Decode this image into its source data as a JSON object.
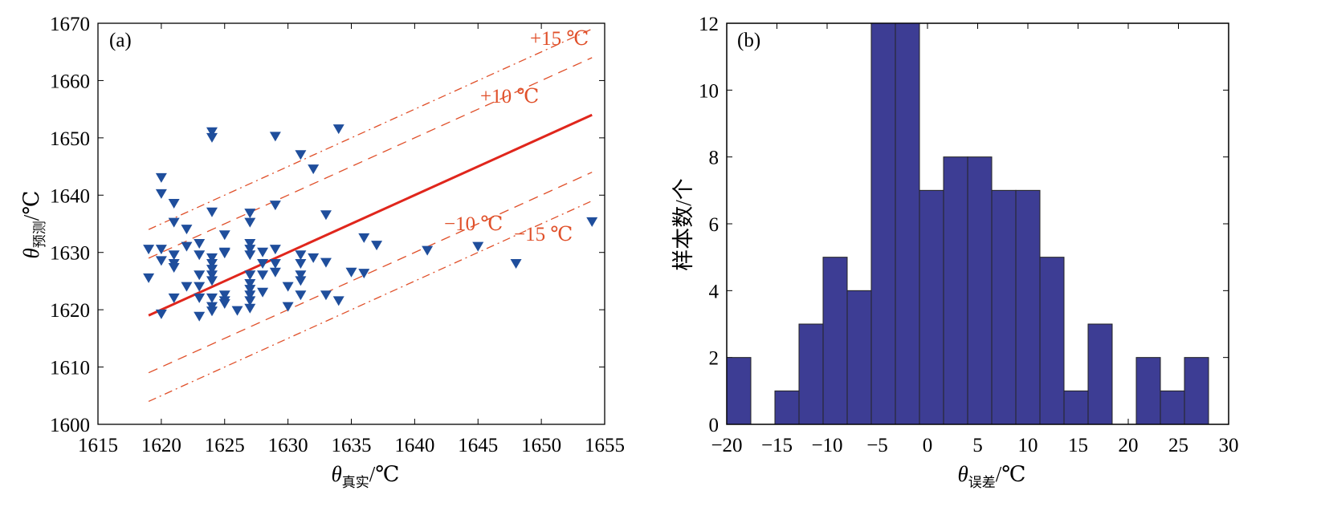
{
  "chart_data": [
    {
      "type": "scatter",
      "panel_label": "(a)",
      "xlabel": {
        "symbol": "θ",
        "sub": "真实",
        "unit": "/℃"
      },
      "ylabel": {
        "symbol": "θ",
        "sub": "预测",
        "unit": "/℃"
      },
      "xlim": [
        1615,
        1655
      ],
      "ylim": [
        1600,
        1670
      ],
      "xticks": [
        1615,
        1620,
        1625,
        1630,
        1635,
        1640,
        1645,
        1650,
        1655
      ],
      "yticks": [
        1600,
        1610,
        1620,
        1630,
        1640,
        1650,
        1660,
        1670
      ],
      "marker": "down-triangle",
      "marker_color": "#1f4e9c",
      "points": [
        [
          1619,
          1630.5
        ],
        [
          1619,
          1625.5
        ],
        [
          1620,
          1643
        ],
        [
          1620,
          1640.2
        ],
        [
          1620,
          1630.5
        ],
        [
          1620,
          1628.5
        ],
        [
          1620,
          1619.2
        ],
        [
          1621,
          1638.5
        ],
        [
          1621,
          1635.2
        ],
        [
          1621,
          1629.5
        ],
        [
          1621,
          1628
        ],
        [
          1621,
          1627.3
        ],
        [
          1621,
          1622
        ],
        [
          1622,
          1634
        ],
        [
          1622,
          1631
        ],
        [
          1622,
          1624
        ],
        [
          1623,
          1631.5
        ],
        [
          1623,
          1629.5
        ],
        [
          1623,
          1626
        ],
        [
          1623,
          1624
        ],
        [
          1623,
          1622
        ],
        [
          1623,
          1618.8
        ],
        [
          1624,
          1651
        ],
        [
          1624,
          1650
        ],
        [
          1624,
          1637
        ],
        [
          1624,
          1629
        ],
        [
          1624,
          1628
        ],
        [
          1624,
          1627
        ],
        [
          1624,
          1626
        ],
        [
          1624,
          1625
        ],
        [
          1624,
          1622
        ],
        [
          1624,
          1620.5
        ],
        [
          1624,
          1619.7
        ],
        [
          1625,
          1633
        ],
        [
          1625,
          1630
        ],
        [
          1625,
          1629.8
        ],
        [
          1625,
          1622.5
        ],
        [
          1625,
          1621.5
        ],
        [
          1625,
          1621
        ],
        [
          1626,
          1619.8
        ],
        [
          1627,
          1636.8
        ],
        [
          1627,
          1635.2
        ],
        [
          1627,
          1631.5
        ],
        [
          1627,
          1630.5
        ],
        [
          1627,
          1629.5
        ],
        [
          1627,
          1626
        ],
        [
          1627,
          1624.5
        ],
        [
          1627,
          1623.5
        ],
        [
          1627,
          1622.5
        ],
        [
          1627,
          1621.5
        ],
        [
          1627,
          1620.2
        ],
        [
          1628,
          1630
        ],
        [
          1628,
          1628
        ],
        [
          1628,
          1626
        ],
        [
          1628,
          1623
        ],
        [
          1629,
          1650.2
        ],
        [
          1629,
          1638.2
        ],
        [
          1629,
          1630.5
        ],
        [
          1629,
          1628
        ],
        [
          1629,
          1626.5
        ],
        [
          1630,
          1624
        ],
        [
          1630,
          1620.5
        ],
        [
          1631,
          1647
        ],
        [
          1631,
          1629.5
        ],
        [
          1631,
          1628
        ],
        [
          1631,
          1626
        ],
        [
          1631,
          1625
        ],
        [
          1631,
          1622.5
        ],
        [
          1632,
          1644.5
        ],
        [
          1632,
          1629
        ],
        [
          1633,
          1636.5
        ],
        [
          1633,
          1628.2
        ],
        [
          1633,
          1622.5
        ],
        [
          1634,
          1651.5
        ],
        [
          1634,
          1621.5
        ],
        [
          1635,
          1626.5
        ],
        [
          1636,
          1632.5
        ],
        [
          1636,
          1626.3
        ],
        [
          1637,
          1631.2
        ],
        [
          1641,
          1630.3
        ],
        [
          1645,
          1631
        ],
        [
          1648,
          1628
        ],
        [
          1654,
          1635.3
        ]
      ],
      "reference_lines": [
        {
          "offset": 0,
          "style": "solid",
          "label": "",
          "color": "#e0261c"
        },
        {
          "offset": 10,
          "style": "dashed",
          "label": "+10 ℃",
          "color": "#e0502a"
        },
        {
          "offset": 15,
          "style": "dashdot",
          "label": "+15 ℃",
          "color": "#e0502a"
        },
        {
          "offset": -10,
          "style": "dashed",
          "label": "−10 ℃",
          "color": "#e0502a"
        },
        {
          "offset": -15,
          "style": "dashdot",
          "label": "−15 ℃",
          "color": "#e0502a"
        }
      ],
      "line_x_range": [
        1619,
        1654
      ]
    },
    {
      "type": "bar",
      "subtype": "histogram",
      "panel_label": "(b)",
      "xlabel": {
        "symbol": "θ",
        "sub": "误差",
        "unit": "/℃"
      },
      "ylabel": "样本数/个",
      "xlim": [
        -20,
        30
      ],
      "ylim": [
        0,
        12
      ],
      "xticks": [
        -20,
        -15,
        -10,
        -5,
        0,
        5,
        10,
        15,
        20,
        25,
        30
      ],
      "xtick_labels": [
        "−20",
        "−15",
        "−10",
        "−5",
        "0",
        "5",
        "10",
        "15",
        "20",
        "25",
        "30"
      ],
      "yticks": [
        0,
        2,
        4,
        6,
        8,
        10,
        12
      ],
      "bin_start": -20,
      "bin_width": 2.4,
      "values": [
        2,
        0,
        1,
        3,
        5,
        4,
        12,
        12,
        7,
        8,
        8,
        7,
        7,
        5,
        1,
        3,
        0,
        2,
        1,
        2
      ],
      "bar_color": "#3d3d94"
    }
  ]
}
